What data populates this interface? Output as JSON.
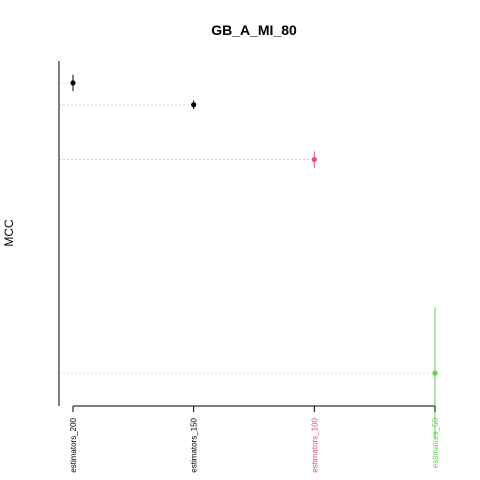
{
  "chart_data": {
    "type": "scatter",
    "title": "GB_A_MI_80",
    "xlabel": "",
    "ylabel": "MCC",
    "categories": [
      "estimators_200",
      "estimators_150",
      "estimators_100",
      "estimators_50"
    ],
    "points": [
      {
        "category": "estimators_200",
        "y": 0.96,
        "lo": 0.945,
        "hi": 0.975,
        "color": "#000000"
      },
      {
        "category": "estimators_150",
        "y": 0.92,
        "lo": 0.912,
        "hi": 0.928,
        "color": "#000000"
      },
      {
        "category": "estimators_100",
        "y": 0.82,
        "lo": 0.805,
        "hi": 0.835,
        "color": "#DF536B"
      },
      {
        "category": "estimators_50",
        "y": 0.43,
        "lo": 0.31,
        "hi": 0.55,
        "color": "#61D04F"
      }
    ],
    "ylim": [
      0.37,
      1.0
    ],
    "grid": "dotted horizontal reference lines",
    "y_tick_labels_visible": false
  }
}
